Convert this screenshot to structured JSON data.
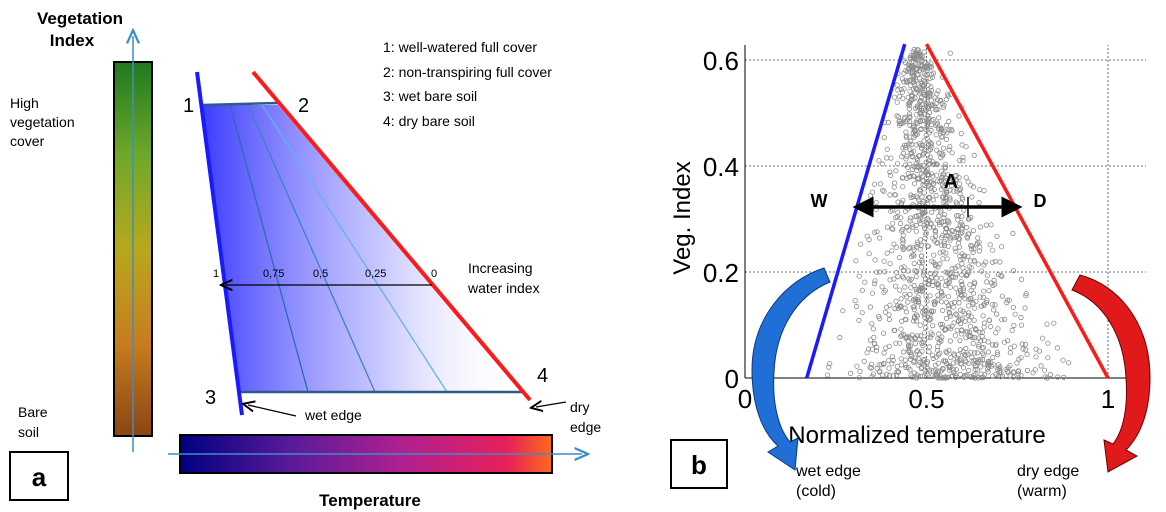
{
  "colors": {
    "wet_edge": "#1a1aff",
    "dry_edge": "#ff1a1a",
    "isoline": "#4a9fe0",
    "axis_arrow": "#3a8ec9",
    "points": "#8c8c8c",
    "arrow_black": "#000000",
    "curved_arrow_blue": "#1f6fd6",
    "curved_arrow_red": "#e01a1a",
    "panel_label_border": "#000000"
  },
  "panel_a": {
    "label": "a",
    "vertical_axis_title_line1": "Vegetation",
    "vertical_axis_title_line2": "Index",
    "high_label_line1": "High",
    "high_label_line2": "vegetation",
    "high_label_line3": "cover",
    "low_label_line1": "Bare",
    "low_label_line2": "soil",
    "horizontal_axis_title": "Temperature",
    "legend": [
      "1: well-watered full cover",
      "2: non-transpiring full cover",
      "3: wet bare soil",
      "4: dry bare soil"
    ],
    "corner_labels": [
      "1",
      "2",
      "3",
      "4"
    ],
    "isoline_labels": [
      "1",
      "0,75",
      "0,5",
      "0,25",
      "0"
    ],
    "water_index_line1": "Increasing",
    "water_index_line2": "water index",
    "wet_edge_label": "wet edge",
    "dry_edge_line1": "dry",
    "dry_edge_line2": "edge",
    "vertical_colorbar_gradient": [
      "#8b4513",
      "#c77d1e",
      "#b8a81c",
      "#6fa82a",
      "#1f7a1f"
    ],
    "horizontal_colorbar_gradient": [
      "#000080",
      "#5a1a9a",
      "#b0208f",
      "#e8205a",
      "#ff6a1a"
    ]
  },
  "panel_b": {
    "label": "b",
    "ylabel": "Veg. Index",
    "xlabel": "Normalized temperature",
    "wet_label": "W",
    "dry_label": "D",
    "arrow_label": "A",
    "wet_edge_line1": "wet edge",
    "wet_edge_line2": "(cold)",
    "dry_edge_line1": "dry edge",
    "dry_edge_line2": "(warm)"
  },
  "chart_data": {
    "type": "scatter",
    "xlabel": "Normalized temperature",
    "ylabel": "Veg. Index",
    "xlim": [
      0,
      1.1
    ],
    "ylim": [
      0,
      0.63
    ],
    "xticks": [
      0,
      0.5,
      1
    ],
    "xtick_labels": [
      "0",
      "0.5",
      "1"
    ],
    "yticks": [
      0,
      0.2,
      0.4,
      0.6
    ],
    "ytick_labels": [
      "0",
      "0.2",
      "0.4",
      "0.6"
    ],
    "grid": true,
    "wet_edge": {
      "x": [
        0.17,
        0.44
      ],
      "y": [
        0,
        0.63
      ]
    },
    "dry_edge": {
      "x": [
        1.0,
        0.5
      ],
      "y": [
        0,
        0.63
      ]
    }
  }
}
